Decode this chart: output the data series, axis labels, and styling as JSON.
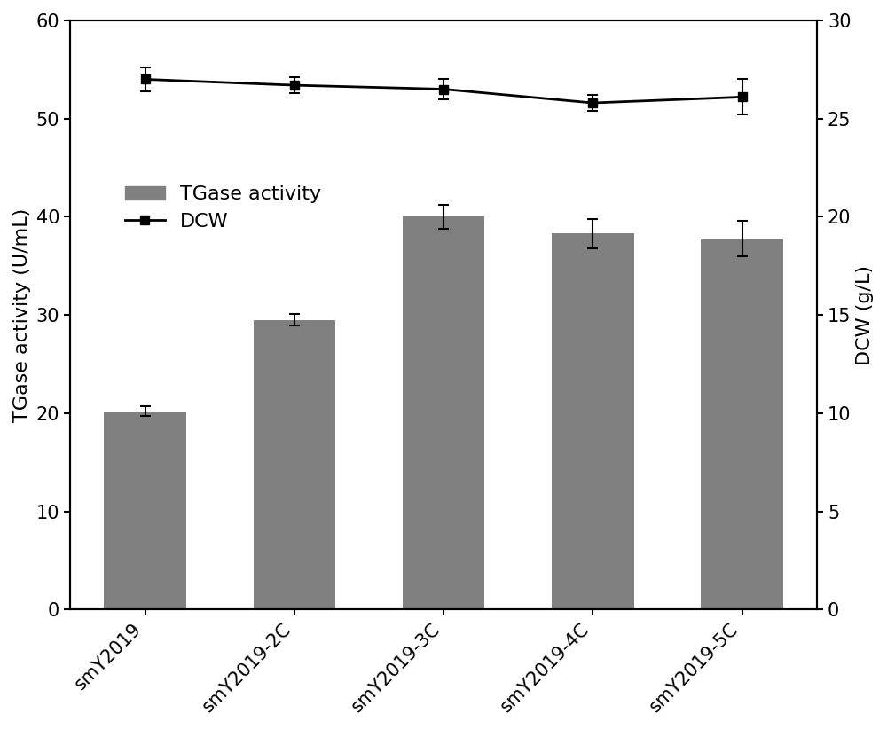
{
  "categories": [
    "smY2019",
    "smY2019-2C",
    "smY2019-3C",
    "smY2019-4C",
    "smY2019-5C"
  ],
  "bar_values": [
    20.2,
    29.5,
    40.0,
    38.3,
    37.8
  ],
  "bar_errors": [
    0.5,
    0.6,
    1.2,
    1.5,
    1.8
  ],
  "bar_color": "#808080",
  "dcw_values": [
    27.0,
    26.7,
    26.5,
    25.8,
    26.1
  ],
  "dcw_errors": [
    0.6,
    0.4,
    0.5,
    0.4,
    0.9
  ],
  "dcw_color": "#000000",
  "left_ylabel": "TGase activity (U/mL)",
  "right_ylabel": "DCW (g/L)",
  "left_ylim": [
    0,
    60
  ],
  "right_ylim": [
    0,
    30
  ],
  "left_yticks": [
    0,
    10,
    20,
    30,
    40,
    50,
    60
  ],
  "right_yticks": [
    0,
    5,
    10,
    15,
    20,
    25,
    30
  ],
  "legend_tgase": "TGase activity",
  "legend_dcw": "DCW",
  "background_color": "#ffffff",
  "bar_width": 0.55,
  "fontsize": 16,
  "tick_fontsize": 15
}
